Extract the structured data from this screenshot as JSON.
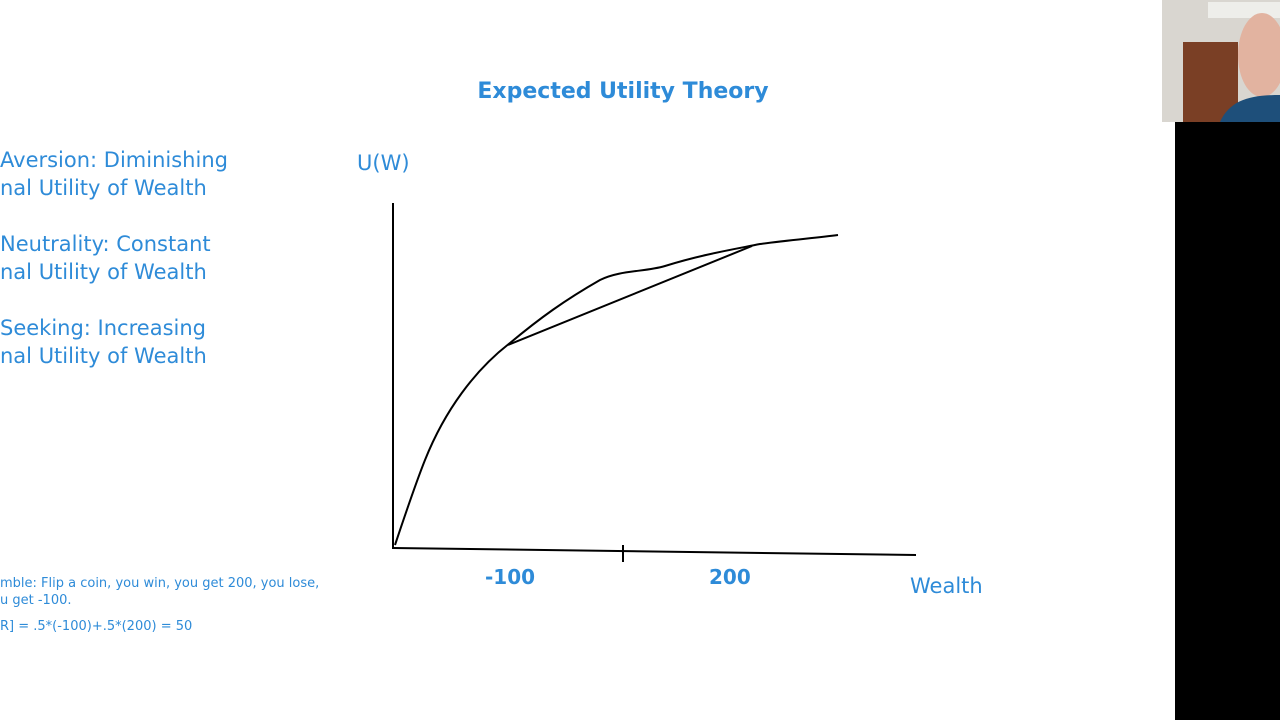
{
  "title": "Expected Utility Theory",
  "bullets": [
    [
      "Aversion: Diminishing",
      "nal Utility of Wealth"
    ],
    [
      "Neutrality: Constant",
      "nal Utility of Wealth"
    ],
    [
      "Seeking: Increasing",
      "nal Utility of Wealth"
    ]
  ],
  "graph": {
    "y_label": "U(W)",
    "x_label": "Wealth",
    "points": [
      "-100",
      "200"
    ]
  },
  "notes": [
    "mble: Flip a coin, you win, you get 200, you lose,",
    "u get -100.",
    "R] = .5*(-100)+.5*(200) = 50"
  ]
}
